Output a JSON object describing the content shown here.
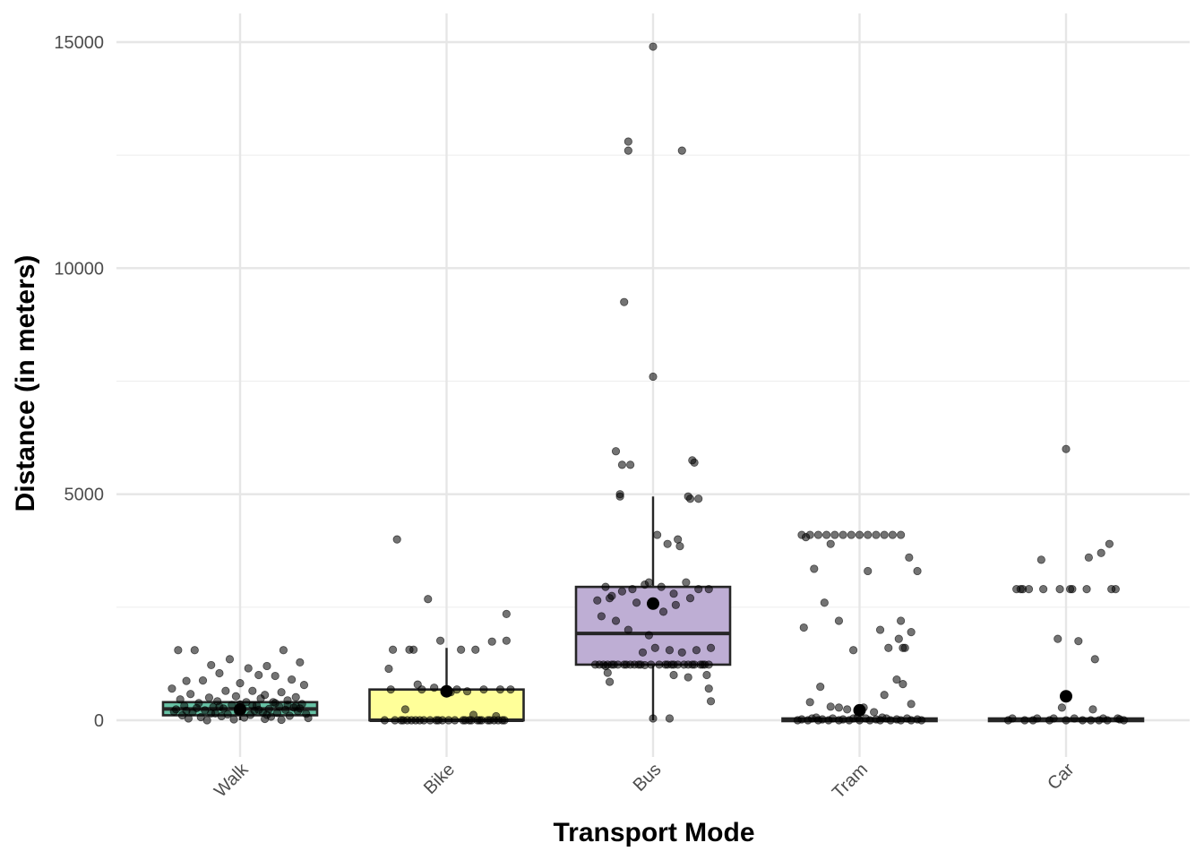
{
  "chart_data": {
    "type": "boxplot",
    "title": "",
    "xlabel": "Transport Mode",
    "ylabel": "Distance (in meters)",
    "ylim": [
      -750,
      15650
    ],
    "yticks": [
      0,
      5000,
      10000,
      15000
    ],
    "ytick_labels": [
      "0",
      "5000",
      "10000",
      "15000"
    ],
    "grid": true,
    "legend": "none",
    "categories": [
      "Walk",
      "Bike",
      "Bus",
      "Tram",
      "Car"
    ],
    "boxes": [
      {
        "category": "Walk",
        "fill": "#66c2a5",
        "q1": 110,
        "median": 250,
        "q3": 400,
        "whisker_low": 0,
        "whisker_high": 400,
        "mean": 240
      },
      {
        "category": "Bike",
        "fill": "#ffff99",
        "q1": 0,
        "median": 0,
        "q3": 680,
        "whisker_low": 0,
        "whisker_high": 1600,
        "mean": 640
      },
      {
        "category": "Bus",
        "fill": "#beaed4",
        "q1": 1230,
        "median": 1920,
        "q3": 2950,
        "whisker_low": 0,
        "whisker_high": 4950,
        "mean": 2580
      },
      {
        "category": "Tram",
        "fill": "#a6cee3",
        "q1": 0,
        "median": 0,
        "q3": 40,
        "whisker_low": 0,
        "whisker_high": 40,
        "mean": 220
      },
      {
        "category": "Car",
        "fill": "#fdc086",
        "q1": 0,
        "median": 0,
        "q3": 40,
        "whisker_low": 0,
        "whisker_high": 40,
        "mean": 530
      }
    ],
    "points": {
      "Walk": {
        "jitter": [
          -0.3,
          -0.22,
          -0.14,
          -0.05,
          0.04,
          0.13,
          0.21,
          0.29,
          -0.26,
          0.09,
          -0.1,
          0.25,
          0.0,
          -0.18,
          0.17,
          0.31,
          -0.33,
          0.06,
          -0.07,
          0.2,
          -0.24,
          0.12,
          -0.02,
          0.27,
          -0.15,
          0.1,
          -0.29,
          0.23,
          -0.11,
          0.03,
          0.16,
          -0.2,
          0.3,
          -0.04,
          0.08,
          -0.27,
          0.19,
          -0.13,
          0.26,
          0.01,
          -0.08,
          0.14,
          -0.31,
          0.22,
          -0.17,
          0.07,
          0.28,
          -0.01,
          -0.23,
          0.11,
          0.18,
          -0.12,
          0.32,
          -0.06,
          0.05,
          -0.28,
          0.24,
          -0.09,
          0.15,
          -0.19,
          0.02,
          0.33,
          -0.25,
          0.12,
          -0.03,
          0.2,
          -0.16,
          0.27,
          -0.21,
          0.09,
          0.0,
          -0.32,
          0.17,
          -0.14,
          0.06,
          -0.26,
          0.29,
          -0.1,
          0.13,
          0.23
        ],
        "values": [
          1550,
          1550,
          1220,
          1350,
          1150,
          1200,
          1550,
          1280,
          870,
          1000,
          1040,
          900,
          820,
          880,
          980,
          780,
          700,
          650,
          650,
          620,
          580,
          560,
          530,
          510,
          500,
          480,
          460,
          440,
          420,
          400,
          400,
          380,
          360,
          340,
          330,
          320,
          300,
          290,
          280,
          270,
          260,
          250,
          240,
          230,
          220,
          210,
          200,
          190,
          180,
          170,
          160,
          150,
          140,
          130,
          120,
          110,
          100,
          90,
          80,
          70,
          60,
          50,
          40,
          30,
          20,
          10,
          0,
          310,
          270,
          230,
          350,
          190,
          380,
          150,
          330,
          210,
          260,
          300,
          120,
          340
        ]
      },
      "Bike": {
        "jitter": [
          -0.24,
          -0.09,
          -0.26,
          -0.16,
          -0.03,
          -0.28,
          -0.18,
          0.07,
          0.22,
          0.14,
          0.29,
          0.29,
          0.31,
          -0.14,
          -0.27,
          -0.12,
          0.05,
          0.18,
          0.26,
          -0.06,
          0.02,
          0.1,
          -0.2,
          0.13,
          0.24,
          -0.3,
          -0.22,
          -0.15,
          -0.08,
          -0.02,
          0.04,
          0.11,
          0.17,
          0.23,
          0.28,
          -0.25,
          -0.19,
          -0.13,
          -0.05,
          0.01,
          0.08,
          0.15,
          0.21,
          0.27,
          -0.11,
          0.16,
          -0.04,
          0.25,
          0.12,
          -0.21,
          0.09,
          -0.17,
          0.2
        ],
        "values": [
          4000,
          2680,
          1560,
          1560,
          1760,
          1140,
          1560,
          1560,
          1740,
          1560,
          1760,
          2350,
          680,
          790,
          680,
          680,
          680,
          680,
          680,
          720,
          620,
          640,
          240,
          120,
          90,
          0,
          0,
          0,
          0,
          0,
          0,
          0,
          0,
          0,
          0,
          0,
          0,
          0,
          0,
          0,
          0,
          0,
          0,
          0,
          0,
          0,
          0,
          0,
          0,
          0,
          0,
          0,
          0
        ]
      },
      "Bus": {
        "jitter": [
          0.0,
          -0.12,
          -0.12,
          0.14,
          -0.14,
          0.0,
          -0.18,
          -0.15,
          -0.11,
          -0.16,
          0.19,
          0.2,
          0.17,
          -0.16,
          0.18,
          0.22,
          0.02,
          0.12,
          0.07,
          0.13,
          -0.23,
          -0.2,
          -0.1,
          -0.04,
          0.04,
          0.1,
          0.16,
          0.22,
          -0.27,
          -0.21,
          -0.15,
          -0.08,
          -0.02,
          0.05,
          0.11,
          0.18,
          0.27,
          -0.25,
          -0.18,
          -0.12,
          -0.05,
          0.01,
          0.08,
          0.14,
          0.21,
          0.28,
          -0.22,
          -0.09,
          0.03,
          0.09,
          0.24,
          -0.19,
          0.15,
          -0.26,
          -0.06,
          0.2,
          -0.17,
          0.07,
          -0.01,
          0.12,
          -0.24,
          -0.13,
          0.06,
          0.23,
          -0.07,
          0.19,
          -0.2,
          0.17,
          -0.11,
          0.25,
          -0.14,
          0.1,
          -0.28,
          0.27,
          -0.02,
          -0.23,
          -0.22,
          -0.04,
          0.1,
          0.26,
          -0.21,
          0.17,
          0.27,
          0.28,
          0.0,
          0.08
        ],
        "values": [
          14900,
          12800,
          12600,
          12600,
          9250,
          7600,
          5950,
          5650,
          5650,
          4950,
          5750,
          5700,
          4950,
          5000,
          4900,
          4900,
          4100,
          4000,
          3900,
          3850,
          2950,
          2750,
          2900,
          3000,
          2950,
          2800,
          3050,
          2900,
          2650,
          2700,
          2850,
          2600,
          3050,
          2400,
          2550,
          2700,
          2900,
          2300,
          2200,
          2000,
          1500,
          1600,
          1550,
          1500,
          1550,
          1600,
          1230,
          1230,
          1230,
          1230,
          1230,
          1230,
          1230,
          1230,
          1230,
          1230,
          1230,
          1230,
          1230,
          1230,
          1230,
          1230,
          1230,
          1230,
          1230,
          1230,
          1230,
          1230,
          1230,
          1230,
          1230,
          1230,
          1230,
          1230,
          1880,
          1200,
          1050,
          1220,
          1000,
          1000,
          850,
          950,
          700,
          420,
          40,
          40
        ]
      },
      "Tram": {
        "jitter": [
          -0.28,
          -0.24,
          -0.2,
          -0.16,
          -0.12,
          -0.08,
          -0.04,
          0.0,
          0.04,
          0.08,
          0.12,
          0.16,
          0.2,
          -0.14,
          -0.26,
          0.24,
          0.28,
          -0.22,
          0.04,
          -0.17,
          -0.1,
          0.2,
          0.25,
          0.1,
          0.19,
          -0.03,
          0.21,
          0.14,
          0.22,
          -0.27,
          -0.19,
          -0.14,
          0.02,
          0.12,
          0.25,
          -0.06,
          0.18,
          -0.24,
          -0.1,
          0.07,
          0.21,
          -0.3,
          -0.25,
          -0.2,
          -0.15,
          -0.1,
          -0.05,
          0.0,
          0.05,
          0.1,
          0.15,
          0.2,
          0.25,
          0.3,
          -0.28,
          -0.18,
          -0.08,
          0.08,
          0.18,
          0.28,
          -0.23,
          -0.13,
          -0.03,
          0.03,
          0.13,
          0.23,
          -0.01,
          0.11,
          -0.21
        ],
        "values": [
          4100,
          4100,
          4100,
          4100,
          4100,
          4100,
          4100,
          4100,
          4100,
          4100,
          4100,
          4100,
          4100,
          3900,
          4050,
          3600,
          3300,
          3350,
          3300,
          2600,
          2200,
          2200,
          1950,
          2000,
          1800,
          1550,
          1600,
          1600,
          1600,
          2050,
          740,
          300,
          280,
          560,
          360,
          240,
          900,
          400,
          280,
          180,
          800,
          0,
          0,
          0,
          0,
          0,
          0,
          0,
          0,
          0,
          0,
          0,
          0,
          0,
          20,
          20,
          20,
          20,
          20,
          20,
          40,
          40,
          40,
          40,
          40,
          40,
          60,
          60,
          60
        ]
      },
      "Car": {
        "jitter": [
          0.0,
          -0.24,
          -0.22,
          -0.21,
          -0.11,
          -0.03,
          0.02,
          0.03,
          0.1,
          0.22,
          0.24,
          0.11,
          0.21,
          0.17,
          -0.12,
          -0.04,
          -0.18,
          0.06,
          0.14,
          0.26,
          -0.28,
          -0.2,
          -0.16,
          -0.08,
          0.0,
          0.08,
          0.12,
          0.16,
          0.2,
          0.28,
          -0.26,
          -0.14,
          -0.06,
          0.04,
          0.18,
          0.25,
          -0.02,
          0.13
        ],
        "values": [
          6000,
          2900,
          2900,
          2900,
          2900,
          2900,
          2900,
          2900,
          2900,
          2900,
          2900,
          3600,
          3900,
          3700,
          3550,
          1800,
          2900,
          1750,
          1350,
          20,
          0,
          0,
          0,
          0,
          0,
          0,
          0,
          0,
          0,
          0,
          40,
          40,
          40,
          40,
          40,
          40,
          280,
          240
        ]
      }
    }
  }
}
